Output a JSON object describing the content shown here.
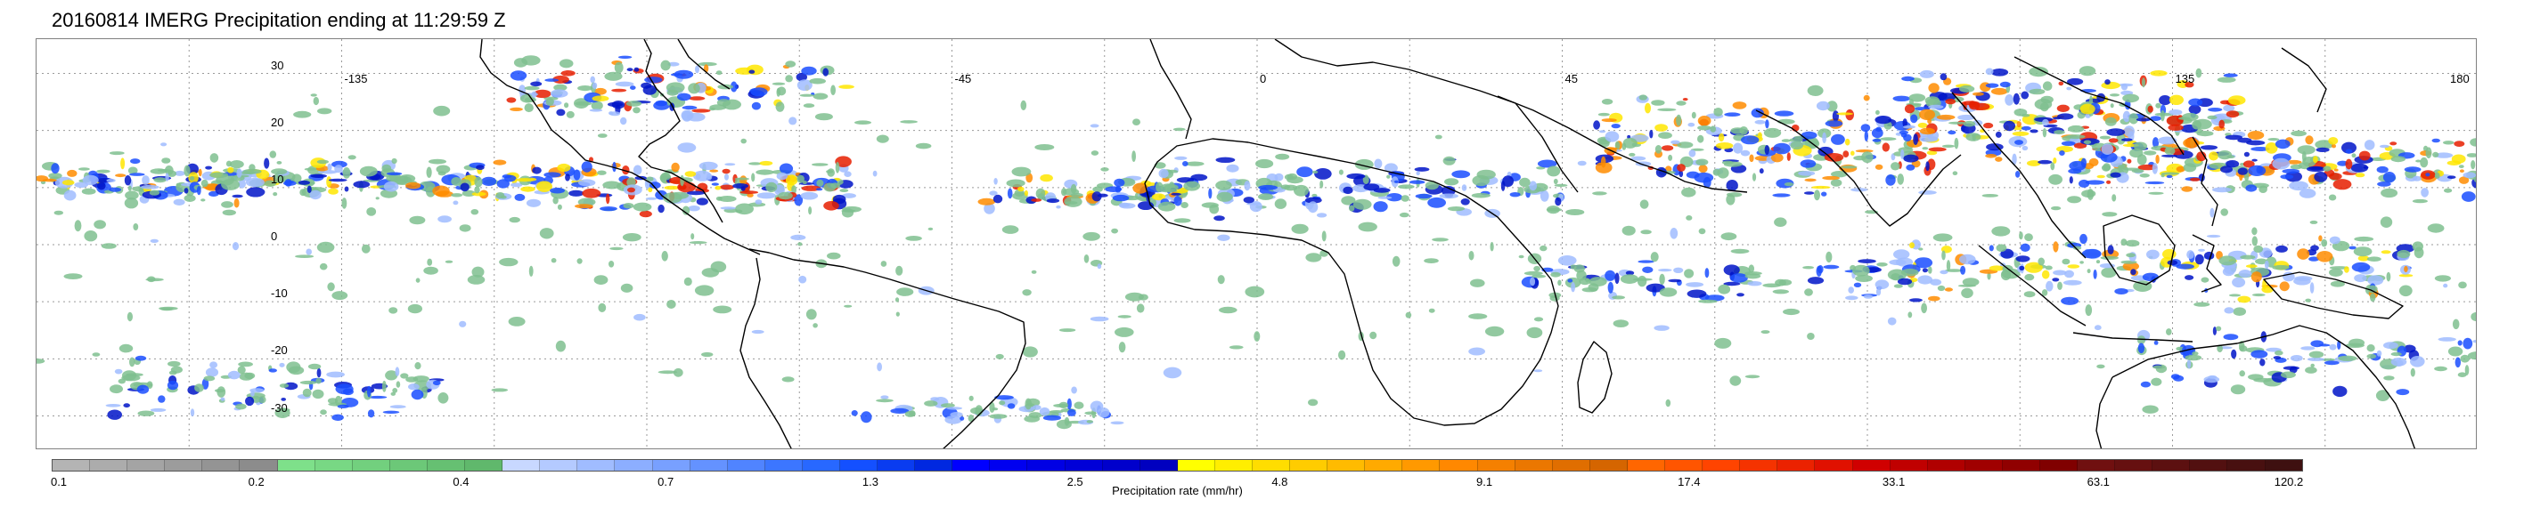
{
  "title": "20160814 IMERG Precipitation ending at 11:29:59 Z",
  "map": {
    "lon_labels": [
      {
        "text": "-135",
        "lon": -135
      },
      {
        "text": "-45",
        "lon": -45
      },
      {
        "text": "0",
        "lon": 0
      },
      {
        "text": "45",
        "lon": 45
      },
      {
        "text": "135",
        "lon": 135
      },
      {
        "text": "180",
        "lon": 180
      }
    ],
    "lat_labels": [
      {
        "text": "30",
        "lat": 30
      },
      {
        "text": "20",
        "lat": 20
      },
      {
        "text": "10",
        "lat": 10
      },
      {
        "text": "0",
        "lat": 0
      },
      {
        "text": "-10",
        "lat": -10
      },
      {
        "text": "-20",
        "lat": -20
      },
      {
        "text": "-30",
        "lat": -30
      }
    ],
    "lon_range": [
      -180,
      180
    ],
    "lat_range": [
      -36,
      36
    ],
    "grid": true,
    "gridline_step_deg": 22.5,
    "gridline_style": "dotted",
    "land_outline_color": "#000000"
  },
  "colorbar": {
    "title": "Precipitation rate (mm/hr)",
    "tick_labels": [
      "0.1",
      "0.2",
      "0.4",
      "0.7",
      "1.3",
      "2.5",
      "4.8",
      "9.1",
      "17.4",
      "33.1",
      "63.1",
      "120.2"
    ],
    "colors": [
      "#b4b4b4",
      "#acacac",
      "#a4a4a4",
      "#9c9c9c",
      "#949494",
      "#8c8c8c",
      "#7ee08a",
      "#78d884",
      "#72d07e",
      "#6cc878",
      "#66c072",
      "#60b86c",
      "#c8d8ff",
      "#b4caff",
      "#a0bcff",
      "#8caeff",
      "#78a0ff",
      "#6492ff",
      "#5084ff",
      "#3c76ff",
      "#2868ff",
      "#1450ff",
      "#0a3cf0",
      "#0028e0",
      "#0000ff",
      "#0000f0",
      "#0000e4",
      "#0000d8",
      "#0000cc",
      "#0000c0",
      "#ffff00",
      "#ffee00",
      "#ffdd00",
      "#ffcc00",
      "#ffbb00",
      "#ffaa00",
      "#ff9900",
      "#ff8800",
      "#f58000",
      "#eb7700",
      "#e06e00",
      "#d56500",
      "#ff6600",
      "#ff5500",
      "#ff4400",
      "#f53300",
      "#eb2200",
      "#e01100",
      "#d00000",
      "#c00000",
      "#b00000",
      "#a00000",
      "#900000",
      "#800000",
      "#701010",
      "#661010",
      "#5c1010",
      "#521010",
      "#481010",
      "#3e1010"
    ],
    "precip_palette": {
      "light_green": "#7fbf8f",
      "pale_blue": "#a0bcff",
      "blue": "#1a4dff",
      "deep_blue": "#0014c8",
      "yellow": "#ffe600",
      "orange": "#ff8c00",
      "red": "#e61e00"
    }
  }
}
